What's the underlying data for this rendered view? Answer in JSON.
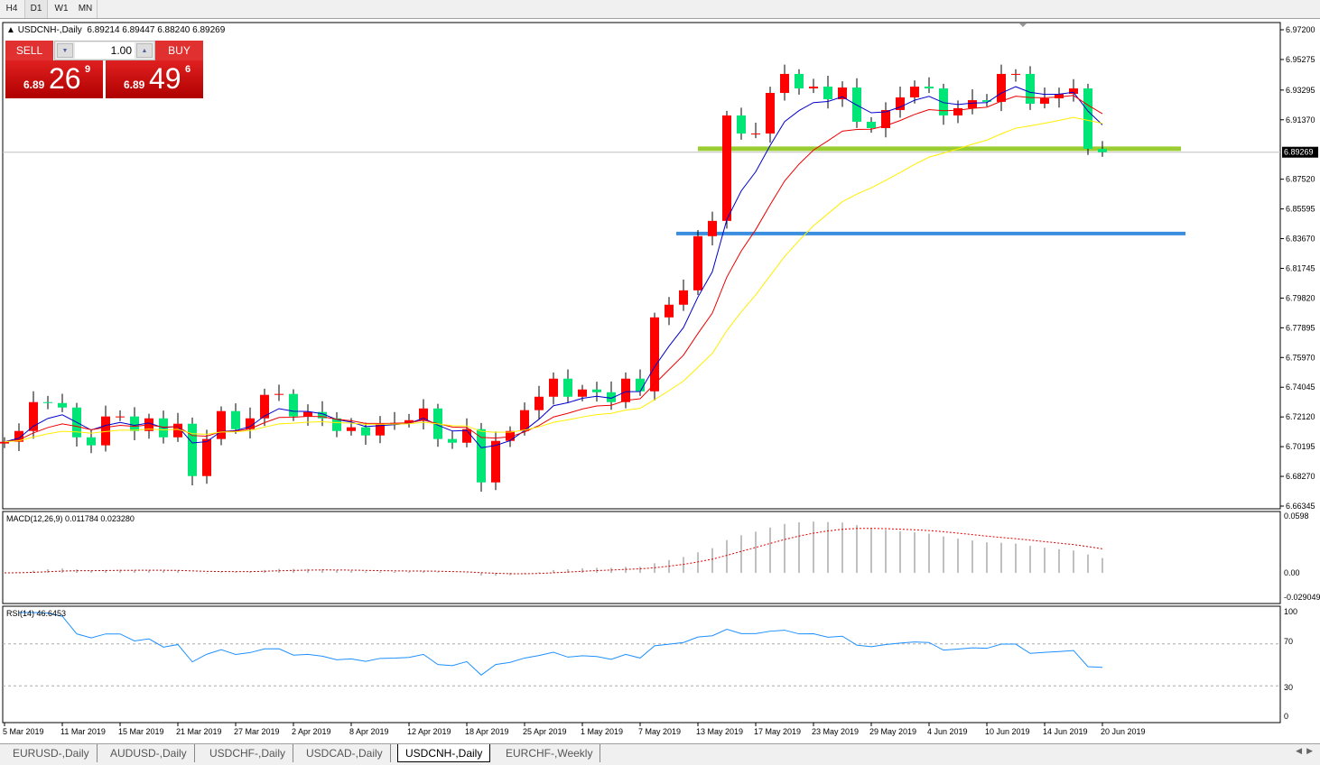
{
  "timeframes": [
    "H4",
    "D1",
    "W1",
    "MN"
  ],
  "active_timeframe": "D1",
  "symbol_line": "USDCNH-,Daily  6.89214 6.89447 6.88240 6.89269",
  "trade_panel": {
    "sell_label": "SELL",
    "buy_label": "BUY",
    "lot": "1.00",
    "sell_prefix": "6.89",
    "sell_big": "26",
    "sell_sup": "9",
    "buy_prefix": "6.89",
    "buy_big": "49",
    "buy_sup": "6"
  },
  "price_axis": [
    "6.97200",
    "6.95275",
    "6.93295",
    "6.91370",
    "6.87520",
    "6.85595",
    "6.83670",
    "6.81745",
    "6.79820",
    "6.77895",
    "6.75970",
    "6.74045",
    "6.72120",
    "6.70195",
    "6.68270",
    "6.66345"
  ],
  "current_price": "6.89269",
  "macd": {
    "label": "MACD(12,26,9) 0.011784 0.023280",
    "axis": [
      "0.0598",
      "0.00",
      "-0.029049"
    ]
  },
  "rsi": {
    "label": "RSI(14) 46.6453",
    "axis": [
      "100",
      "70",
      "30",
      "0"
    ]
  },
  "date_axis": [
    "5 Mar 2019",
    "11 Mar 2019",
    "15 Mar 2019",
    "21 Mar 2019",
    "27 Mar 2019",
    "2 Apr 2019",
    "8 Apr 2019",
    "12 Apr 2019",
    "18 Apr 2019",
    "25 Apr 2019",
    "1 May 2019",
    "7 May 2019",
    "13 May 2019",
    "17 May 2019",
    "23 May 2019",
    "29 May 2019",
    "4 Jun 2019",
    "10 Jun 2019",
    "14 Jun 2019",
    "20 Jun 2019"
  ],
  "chart_data": {
    "type": "candlestick",
    "first_open": 6.704,
    "closes": [
      6.7051,
      6.7121,
      6.7308,
      6.7302,
      6.7273,
      6.708,
      6.7028,
      6.7215,
      6.7215,
      6.7121,
      6.7203,
      6.708,
      6.7168,
      6.6829,
      6.7069,
      6.725,
      6.7133,
      6.7203,
      6.7355,
      6.7361,
      6.7215,
      6.7244,
      6.7203,
      6.7121,
      6.7145,
      6.7092,
      6.7168,
      6.7174,
      6.7191,
      6.7267,
      6.7069,
      6.7045,
      6.7133,
      6.6788,
      6.7057,
      6.7121,
      6.7256,
      6.7343,
      6.746,
      6.7343,
      6.739,
      6.7372,
      6.7308,
      6.746,
      6.7378,
      6.7857,
      6.7939,
      6.8032,
      6.8383,
      6.8482,
      6.9165,
      6.9048,
      6.9048,
      6.9311,
      6.9434,
      6.934,
      6.9352,
      6.927,
      6.9346,
      6.9124,
      6.9083,
      6.92,
      6.9282,
      6.9352,
      6.934,
      6.9165,
      6.9212,
      6.9264,
      6.9253,
      6.9434,
      6.9434,
      6.9241,
      6.9276,
      6.9305,
      6.934,
      6.8949,
      6.89269
    ],
    "ylim": [
      6.66345,
      6.972
    ],
    "hlines": [
      {
        "price": 6.8949,
        "color": "#9acd32"
      },
      {
        "price": 6.84,
        "color": "#3a8ee0"
      }
    ],
    "up_color": "#ff0000",
    "down_color": "#00e676",
    "ma_colors": [
      "#0000cc",
      "#ee0000",
      "#ffee00"
    ]
  },
  "tabs": [
    "EURUSD-,Daily",
    "AUDUSD-,Daily",
    "USDCHF-,Daily",
    "USDCAD-,Daily",
    "USDCNH-,Daily",
    "EURCHF-,Weekly"
  ],
  "active_tab": "USDCNH-,Daily"
}
